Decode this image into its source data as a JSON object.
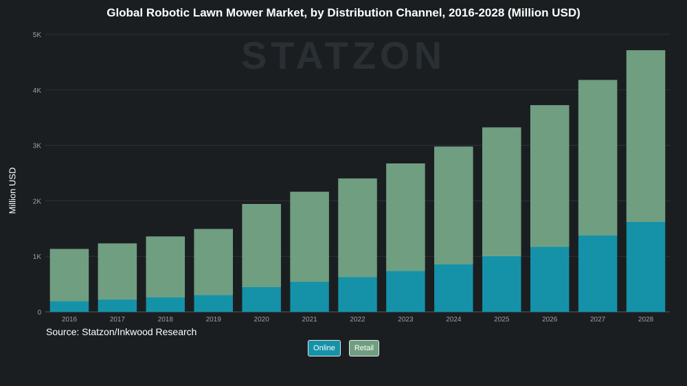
{
  "title": "Global Robotic Lawn Mower Market, by Distribution Channel, 2016-2028 (Million USD)",
  "watermark": "STATZON",
  "source": "Source: Statzon/Inkwood Research",
  "colors": {
    "online": "#1592a8",
    "retail": "#6f9e80",
    "background": "#1b1e21",
    "grid": "#2e3338"
  },
  "legend": {
    "online_label": "Online",
    "retail_label": "Retail"
  },
  "chart_data": {
    "type": "bar",
    "stacked": true,
    "title": "Global Robotic Lawn Mower Market, by Distribution Channel, 2016-2028 (Million USD)",
    "xlabel": "",
    "ylabel": "Million USD",
    "ylim": [
      0,
      5000
    ],
    "yticks": [
      "0",
      "1K",
      "2K",
      "3K",
      "4K",
      "5K"
    ],
    "grid": true,
    "legend_position": "bottom",
    "categories": [
      "2016",
      "2017",
      "2018",
      "2019",
      "2020",
      "2021",
      "2022",
      "2023",
      "2024",
      "2025",
      "2026",
      "2027",
      "2028"
    ],
    "series": [
      {
        "name": "Online",
        "values": [
          195,
          225,
          265,
          305,
          450,
          545,
          630,
          740,
          860,
          1005,
          1175,
          1380,
          1625
        ]
      },
      {
        "name": "Retail",
        "values": [
          935,
          1005,
          1090,
          1185,
          1490,
          1615,
          1770,
          1930,
          2115,
          2315,
          2545,
          2795,
          3085
        ]
      }
    ]
  }
}
